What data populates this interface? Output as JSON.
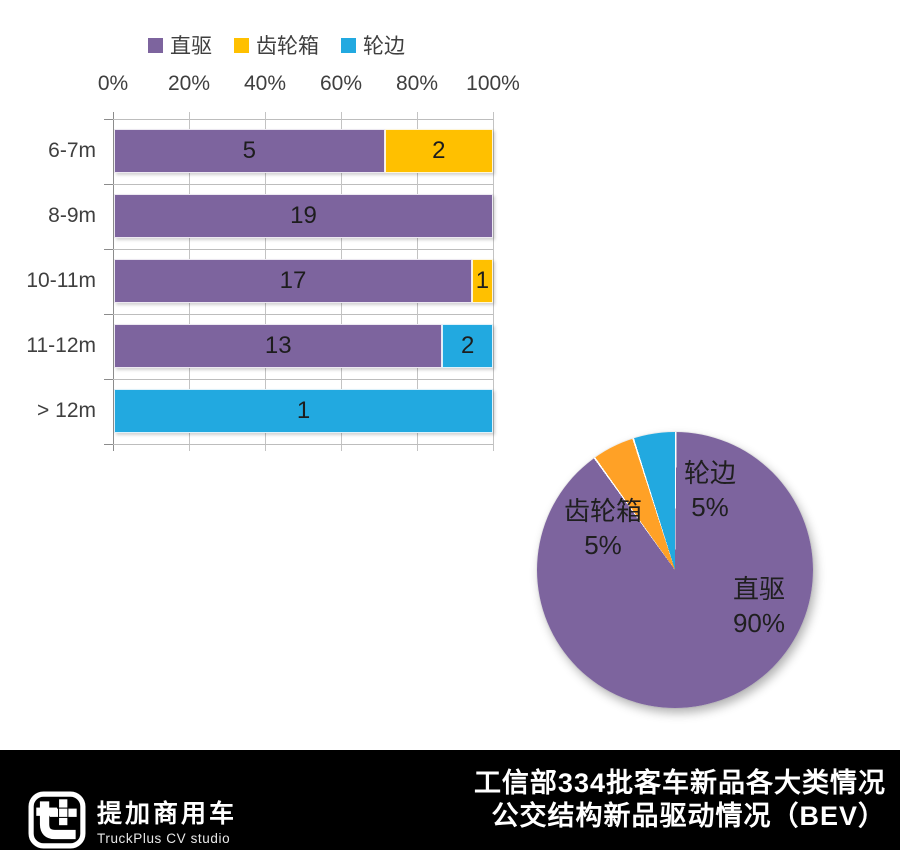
{
  "legend": {
    "items": [
      {
        "label": "直驱",
        "color": "#7D649E"
      },
      {
        "label": "齿轮箱",
        "color": "#FFC000"
      },
      {
        "label": "轮边",
        "color": "#22A9E0"
      }
    ]
  },
  "chart_data": [
    {
      "type": "bar",
      "orientation": "horizontal-stacked-100pct",
      "title": "",
      "categories": [
        "6-7m",
        "8-9m",
        "10-11m",
        "11-12m",
        "> 12m"
      ],
      "series": [
        {
          "name": "直驱",
          "color": "#7D649E",
          "values": [
            5,
            19,
            17,
            13,
            0
          ]
        },
        {
          "name": "齿轮箱",
          "color": "#FFC000",
          "values": [
            2,
            0,
            1,
            0,
            0
          ]
        },
        {
          "name": "轮边",
          "color": "#22A9E0",
          "values": [
            0,
            0,
            0,
            2,
            1
          ]
        }
      ],
      "x_ticks": [
        "0%",
        "20%",
        "40%",
        "60%",
        "80%",
        "100%"
      ],
      "xlim": [
        0,
        100
      ],
      "grid": true,
      "legend_position": "top"
    },
    {
      "type": "pie",
      "start_angle_deg": 0,
      "direction": "clockwise",
      "slices": [
        {
          "label": "直驱",
          "pct": 90,
          "color": "#7D649E"
        },
        {
          "label": "齿轮箱",
          "pct": 5,
          "color": "#FFA126"
        },
        {
          "label": "轮边",
          "pct": 5,
          "color": "#22A9E0"
        }
      ]
    }
  ],
  "footer": {
    "logo": {
      "cn": "提加商用车",
      "en": "TruckPlus CV studio"
    },
    "title_line1": "工信部334批客车新品各大类情况",
    "title_line2": "公交结构新品驱动情况（BEV）"
  }
}
